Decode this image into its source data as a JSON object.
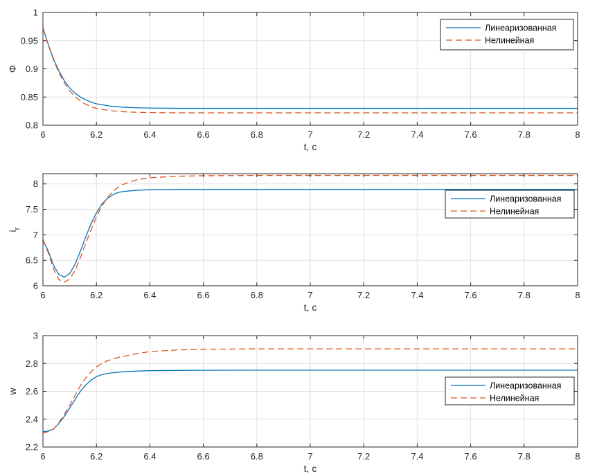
{
  "chart_data": [
    {
      "type": "line",
      "xlabel": "t, c",
      "ylabel": "Φ",
      "ylabel_sub": "",
      "xlim": [
        6,
        8
      ],
      "ylim": [
        0.8,
        1
      ],
      "xticks": [
        "6",
        "6.2",
        "6.4",
        "6.6",
        "6.8",
        "7",
        "7.2",
        "7.4",
        "7.6",
        "7.8",
        "8"
      ],
      "yticks": [
        "0.8",
        "0.85",
        "0.9",
        "0.95",
        "1"
      ],
      "grid": true,
      "legend_position": "top-right",
      "series": [
        {
          "name": "Линеаризованная",
          "color": "#0072BD",
          "style": "solid",
          "x": [
            6.0,
            6.02,
            6.04,
            6.06,
            6.08,
            6.1,
            6.12,
            6.14,
            6.16,
            6.18,
            6.2,
            6.25,
            6.3,
            6.35,
            6.4,
            6.5,
            6.6,
            6.8,
            7.0,
            7.5,
            8.0
          ],
          "y": [
            0.973,
            0.943,
            0.917,
            0.896,
            0.879,
            0.866,
            0.857,
            0.85,
            0.845,
            0.841,
            0.838,
            0.834,
            0.832,
            0.831,
            0.8305,
            0.83,
            0.83,
            0.83,
            0.83,
            0.83,
            0.83
          ]
        },
        {
          "name": "Нелинейная",
          "color": "#D95319",
          "style": "dashed",
          "x": [
            6.0,
            6.02,
            6.04,
            6.06,
            6.08,
            6.1,
            6.12,
            6.14,
            6.16,
            6.18,
            6.2,
            6.25,
            6.3,
            6.35,
            6.4,
            6.5,
            6.6,
            6.8,
            7.0,
            7.5,
            8.0
          ],
          "y": [
            0.973,
            0.942,
            0.915,
            0.893,
            0.875,
            0.861,
            0.851,
            0.843,
            0.837,
            0.833,
            0.83,
            0.826,
            0.824,
            0.823,
            0.8225,
            0.822,
            0.822,
            0.822,
            0.822,
            0.822,
            0.822
          ]
        }
      ]
    },
    {
      "type": "line",
      "xlabel": "t, c",
      "ylabel": "i",
      "ylabel_sub": "r",
      "xlim": [
        6,
        8
      ],
      "ylim": [
        6,
        8.2
      ],
      "xticks": [
        "6",
        "6.2",
        "6.4",
        "6.6",
        "6.8",
        "7",
        "7.2",
        "7.4",
        "7.6",
        "7.8",
        "8"
      ],
      "yticks": [
        "6",
        "6.5",
        "7",
        "7.5",
        "8"
      ],
      "grid": true,
      "legend_position": "right",
      "series": [
        {
          "name": "Линеаризованная",
          "color": "#0072BD",
          "style": "solid",
          "x": [
            6.0,
            6.02,
            6.04,
            6.06,
            6.08,
            6.1,
            6.12,
            6.14,
            6.16,
            6.18,
            6.2,
            6.22,
            6.24,
            6.26,
            6.28,
            6.3,
            6.35,
            6.4,
            6.5,
            6.6,
            7.0,
            7.5,
            8.0
          ],
          "y": [
            6.9,
            6.68,
            6.4,
            6.22,
            6.17,
            6.24,
            6.42,
            6.68,
            6.96,
            7.22,
            7.43,
            7.6,
            7.71,
            7.78,
            7.83,
            7.85,
            7.875,
            7.885,
            7.89,
            7.89,
            7.89,
            7.89,
            7.89
          ]
        },
        {
          "name": "Нелинейная",
          "color": "#D95319",
          "style": "dashed",
          "x": [
            6.0,
            6.02,
            6.04,
            6.06,
            6.08,
            6.1,
            6.12,
            6.14,
            6.16,
            6.18,
            6.2,
            6.22,
            6.24,
            6.26,
            6.28,
            6.3,
            6.35,
            6.4,
            6.5,
            6.6,
            6.8,
            7.0,
            7.5,
            8.0
          ],
          "y": [
            6.9,
            6.65,
            6.33,
            6.12,
            6.07,
            6.13,
            6.3,
            6.55,
            6.83,
            7.1,
            7.35,
            7.56,
            7.72,
            7.84,
            7.93,
            7.99,
            8.08,
            8.12,
            8.15,
            8.16,
            8.165,
            8.165,
            8.165,
            8.165
          ]
        }
      ]
    },
    {
      "type": "line",
      "xlabel": "t, c",
      "ylabel": "w",
      "ylabel_sub": "",
      "xlim": [
        6,
        8
      ],
      "ylim": [
        2.2,
        3
      ],
      "xticks": [
        "6",
        "6.2",
        "6.4",
        "6.6",
        "6.8",
        "7",
        "7.2",
        "7.4",
        "7.6",
        "7.8",
        "8"
      ],
      "yticks": [
        "2.2",
        "2.4",
        "2.6",
        "2.8",
        "3"
      ],
      "grid": true,
      "legend_position": "right",
      "series": [
        {
          "name": "Линеаризованная",
          "color": "#0072BD",
          "style": "solid",
          "x": [
            6.0,
            6.02,
            6.04,
            6.06,
            6.08,
            6.1,
            6.12,
            6.14,
            6.16,
            6.18,
            6.2,
            6.22,
            6.24,
            6.26,
            6.28,
            6.3,
            6.35,
            6.4,
            6.5,
            6.6,
            6.8,
            7.0,
            7.5,
            8.0
          ],
          "y": [
            2.31,
            2.315,
            2.33,
            2.37,
            2.42,
            2.48,
            2.54,
            2.6,
            2.645,
            2.68,
            2.705,
            2.72,
            2.728,
            2.733,
            2.737,
            2.74,
            2.745,
            2.748,
            2.75,
            2.751,
            2.752,
            2.752,
            2.752,
            2.752
          ]
        },
        {
          "name": "Нелинейная",
          "color": "#D95319",
          "style": "dashed",
          "x": [
            6.0,
            6.02,
            6.04,
            6.06,
            6.08,
            6.1,
            6.12,
            6.14,
            6.16,
            6.18,
            6.2,
            6.22,
            6.24,
            6.26,
            6.28,
            6.3,
            6.35,
            6.4,
            6.5,
            6.6,
            6.8,
            7.0,
            7.5,
            8.0
          ],
          "y": [
            2.3,
            2.31,
            2.33,
            2.375,
            2.435,
            2.5,
            2.57,
            2.64,
            2.695,
            2.74,
            2.775,
            2.8,
            2.818,
            2.832,
            2.842,
            2.85,
            2.87,
            2.885,
            2.897,
            2.902,
            2.905,
            2.905,
            2.905,
            2.905
          ]
        }
      ]
    }
  ]
}
